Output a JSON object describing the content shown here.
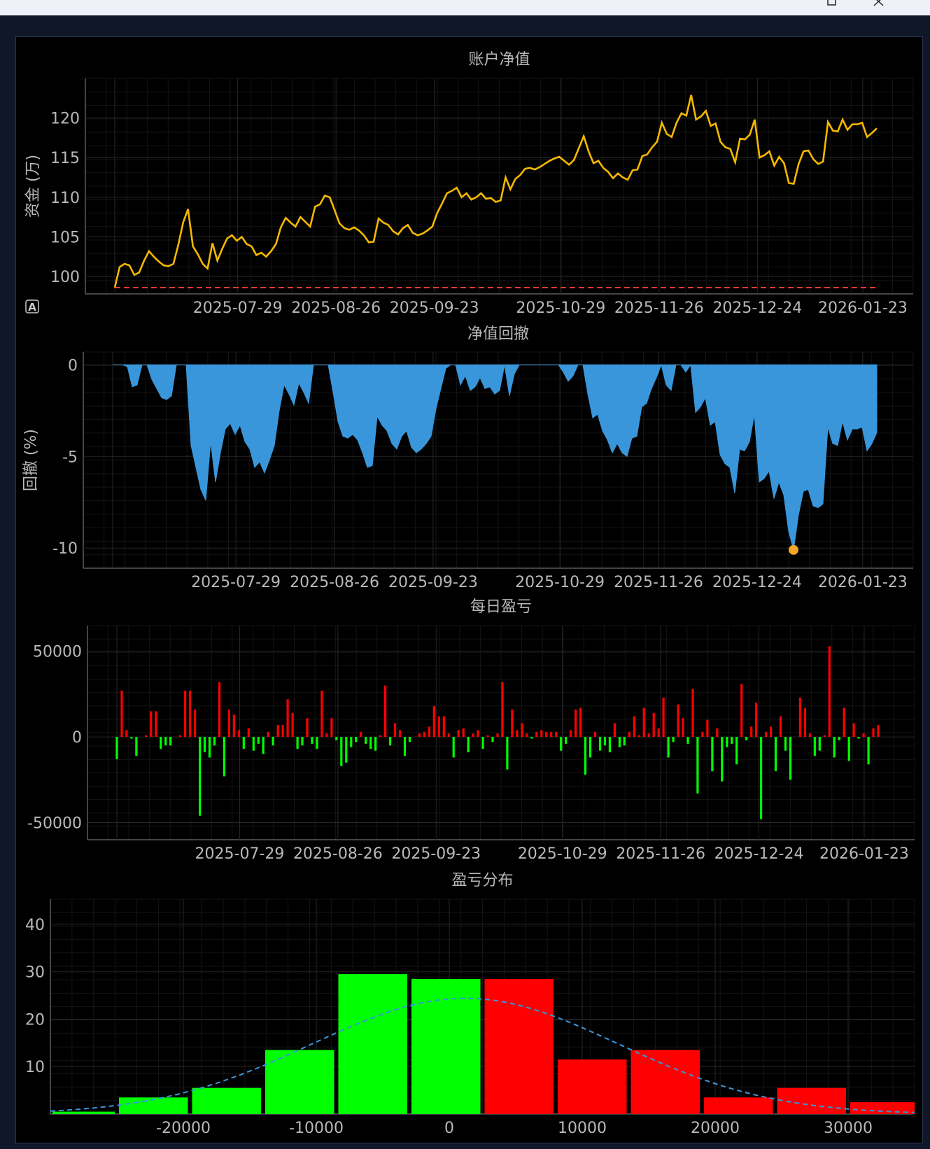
{
  "window": {
    "maximize_icon": "maximize-icon",
    "close_icon": "close-icon"
  },
  "colors": {
    "equity": "#f5b800",
    "baseline": "#e0402a",
    "drawdown": "#3996db",
    "drawdown_marker": "#f5a623",
    "profit": "#ff0000",
    "loss": "#00ff00",
    "normal_curve": "#3996db",
    "bg": "#000000",
    "grid": "#262626"
  },
  "date_ticks": [
    "2025-07-29",
    "2025-08-26",
    "2025-09-23",
    "2025-10-29",
    "2025-11-26",
    "2025-12-24",
    "2026-01-23"
  ],
  "autoscale_icon": "autoscale-icon",
  "chart_data": [
    {
      "type": "line",
      "title": "账户净值",
      "ylabel": "资金 (万)",
      "yticks": [
        100,
        105,
        110,
        115,
        120
      ],
      "ylim": [
        97.8,
        125
      ],
      "baseline": 98.6,
      "x_range_days": [
        0,
        217
      ],
      "series": [
        {
          "values": [
            98.6,
            101.2,
            101.6,
            101.4,
            100.2,
            100.5,
            102.0,
            103.2,
            102.5,
            101.9,
            101.4,
            101.3,
            101.6,
            104.0,
            106.8,
            108.5,
            103.8,
            102.8,
            101.6,
            101.0,
            104.2,
            102.0,
            103.5,
            104.8,
            105.2,
            104.5,
            105.0,
            104.1,
            103.8,
            102.7,
            103.0,
            102.5,
            103.2,
            104.1,
            106.2,
            107.4,
            106.8,
            106.3,
            107.5,
            106.9,
            106.3,
            108.8,
            109.1,
            110.2,
            110.0,
            108.4,
            106.7,
            106.1,
            105.9,
            106.2,
            105.8,
            105.2,
            104.3,
            104.4,
            107.3,
            106.8,
            106.5,
            105.7,
            105.3,
            106.1,
            106.5,
            105.5,
            105.2,
            105.4,
            105.8,
            106.3,
            108.0,
            109.2,
            110.5,
            110.8,
            111.2,
            110.0,
            110.5,
            109.7,
            110.0,
            110.5,
            109.8,
            109.9,
            109.4,
            109.6,
            112.5,
            111.0,
            112.3,
            112.8,
            113.6,
            113.7,
            113.5,
            113.8,
            114.2,
            114.6,
            114.9,
            115.1,
            114.6,
            114.1,
            114.7,
            116.2,
            117.7,
            115.8,
            114.3,
            114.6,
            113.7,
            113.2,
            112.4,
            113.0,
            112.5,
            112.2,
            113.4,
            113.5,
            115.2,
            115.4,
            116.3,
            117.0,
            119.4,
            118.0,
            117.6,
            119.4,
            120.6,
            120.3,
            122.9,
            119.8,
            120.2,
            120.9,
            119.0,
            119.3,
            117.0,
            116.3,
            116.1,
            114.4,
            117.4,
            117.3,
            117.9,
            119.8,
            115.0,
            115.3,
            115.8,
            114.0,
            115.1,
            114.3,
            111.8,
            111.7,
            114.2,
            115.8,
            115.9,
            114.8,
            114.2,
            114.5,
            119.5,
            118.4,
            118.3,
            119.8,
            118.5,
            119.2,
            119.2,
            119.4,
            117.6,
            118.1,
            118.7
          ]
        }
      ]
    },
    {
      "type": "area",
      "title": "净值回撤",
      "ylabel": "回撤 (%)",
      "yticks": [
        0,
        -5,
        -10
      ],
      "ylim": [
        -11.1,
        0.7
      ],
      "min_marker": {
        "value": -10.1
      },
      "x_range_days": [
        0,
        217
      ],
      "series": [
        {
          "values": [
            0,
            0,
            0,
            -0.1,
            -1.2,
            -1.1,
            0,
            0,
            -0.8,
            -1.3,
            -1.8,
            -1.9,
            -1.7,
            0,
            0,
            0,
            -4.4,
            -5.6,
            -6.8,
            -7.4,
            -4.2,
            -6.4,
            -4.8,
            -3.5,
            -3.2,
            -3.8,
            -3.3,
            -4.2,
            -4.6,
            -5.6,
            -5.3,
            -5.9,
            -5.2,
            -4.4,
            -2.5,
            -1.1,
            -1.6,
            -2.2,
            -1.0,
            -1.5,
            -2.1,
            0,
            0,
            0,
            0,
            -1.5,
            -3.1,
            -3.9,
            -4.0,
            -3.8,
            -4.1,
            -4.8,
            -5.6,
            -5.5,
            -2.8,
            -3.3,
            -3.6,
            -4.3,
            -4.6,
            -3.9,
            -3.6,
            -4.5,
            -4.8,
            -4.6,
            -4.3,
            -3.9,
            -2.4,
            -1.3,
            -0.2,
            0,
            0,
            -1.1,
            -0.6,
            -1.4,
            -1.2,
            -0.7,
            -1.3,
            -1.2,
            -1.6,
            -1.4,
            0,
            -1.7,
            -0.5,
            0,
            0,
            0,
            0,
            0,
            0,
            0,
            0,
            0,
            -0.4,
            -0.9,
            -0.6,
            0,
            0,
            -1.6,
            -2.9,
            -2.7,
            -3.6,
            -4.1,
            -4.8,
            -4.3,
            -4.8,
            -5.0,
            -4.0,
            -3.9,
            -2.3,
            -2.1,
            -1.3,
            -0.7,
            0,
            -1.1,
            -1.4,
            0,
            0,
            -0.4,
            0,
            -2.6,
            -2.3,
            -1.8,
            -3.3,
            -3.1,
            -4.9,
            -5.4,
            -5.6,
            -7.0,
            -4.6,
            -4.7,
            -4.2,
            -2.7,
            -6.4,
            -6.2,
            -5.8,
            -7.3,
            -6.4,
            -7.1,
            -9.1,
            -10.1,
            -8.2,
            -6.9,
            -6.8,
            -7.7,
            -7.8,
            -7.6,
            -3.4,
            -4.3,
            -4.4,
            -3.1,
            -4.1,
            -3.5,
            -3.5,
            -3.4,
            -4.7,
            -4.3,
            -3.7
          ]
        }
      ]
    },
    {
      "type": "bar",
      "title": "每日盈亏",
      "yticks": [
        50000,
        0,
        -50000
      ],
      "ylim": [
        -60000,
        65000
      ],
      "x_range_days": [
        0,
        217
      ],
      "values": [
        -13000,
        27000,
        4000,
        -1000,
        -11000,
        0,
        1000,
        15000,
        15000,
        -7000,
        -5000,
        -5000,
        0,
        1000,
        27000,
        27000,
        16000,
        -46000,
        -9000,
        -12000,
        -5000,
        32000,
        -23000,
        16000,
        13000,
        4000,
        -7000,
        5000,
        -8000,
        -4000,
        -10000,
        3000,
        -5000,
        7000,
        7000,
        22000,
        14000,
        -7000,
        -5000,
        11000,
        -4000,
        -7000,
        27000,
        2000,
        11000,
        -2000,
        -17000,
        -15000,
        -6000,
        -3000,
        3000,
        -4000,
        -7000,
        -8000,
        1000,
        30000,
        -5000,
        8000,
        4000,
        -11000,
        -3000,
        0,
        2000,
        3000,
        6000,
        18000,
        12000,
        12000,
        2000,
        -12000,
        4000,
        5000,
        -9000,
        2000,
        4000,
        -7000,
        1000,
        -3000,
        2000,
        32000,
        -19000,
        16000,
        4000,
        8000,
        2000,
        -1000,
        3000,
        4000,
        3000,
        3000,
        3000,
        -8000,
        -4000,
        4000,
        16000,
        17000,
        -22000,
        -12000,
        3000,
        -8000,
        -5000,
        -9000,
        8000,
        -6000,
        -5000,
        3000,
        12000,
        1000,
        17000,
        2000,
        14000,
        5000,
        23000,
        -12000,
        -3000,
        19000,
        11000,
        -4000,
        28000,
        -33000,
        3000,
        10000,
        -20000,
        5000,
        -26000,
        -6000,
        -4000,
        -16000,
        31000,
        -2000,
        6000,
        20000,
        -48000,
        3000,
        6000,
        -20000,
        12000,
        -8000,
        -25000,
        0,
        23000,
        17000,
        2000,
        -11000,
        -8000,
        1000,
        53000,
        -12000,
        -2000,
        17000,
        -14000,
        8000,
        -1000,
        2000,
        -16000,
        5000,
        7000
      ]
    },
    {
      "type": "bar",
      "title": "盈亏分布",
      "xticks": [
        -20000,
        -10000,
        0,
        10000,
        20000,
        30000
      ],
      "yticks": [
        10,
        20,
        30,
        40
      ],
      "xlim": [
        -30000,
        35000
      ],
      "ylim": [
        0,
        45.3
      ],
      "bins": [
        {
          "x0": -30000,
          "x1": -25000,
          "count": 0.5,
          "side": "loss"
        },
        {
          "x0": -25000,
          "x1": -19500,
          "count": 3.5,
          "side": "loss"
        },
        {
          "x0": -19500,
          "x1": -14000,
          "count": 5.5,
          "side": "loss"
        },
        {
          "x0": -14000,
          "x1": -8500,
          "count": 13.5,
          "side": "loss"
        },
        {
          "x0": -8500,
          "x1": -3000,
          "count": 29.5,
          "side": "loss"
        },
        {
          "x0": -3000,
          "x1": 2500,
          "count": 28.5,
          "side": "loss"
        },
        {
          "x0": 2500,
          "x1": 8000,
          "count": 28.5,
          "side": "profit"
        },
        {
          "x0": 8000,
          "x1": 13500,
          "count": 11.5,
          "side": "profit"
        },
        {
          "x0": 13500,
          "x1": 19000,
          "count": 13.5,
          "side": "profit"
        },
        {
          "x0": 19000,
          "x1": 24500,
          "count": 3.5,
          "side": "profit"
        },
        {
          "x0": 24500,
          "x1": 30000,
          "count": 5.5,
          "side": "profit"
        },
        {
          "x0": 30000,
          "x1": 35500,
          "count": 2.5,
          "side": "profit"
        }
      ],
      "normal_curve": {
        "mean": 1200,
        "std": 11500,
        "peak": 24.4
      }
    }
  ]
}
